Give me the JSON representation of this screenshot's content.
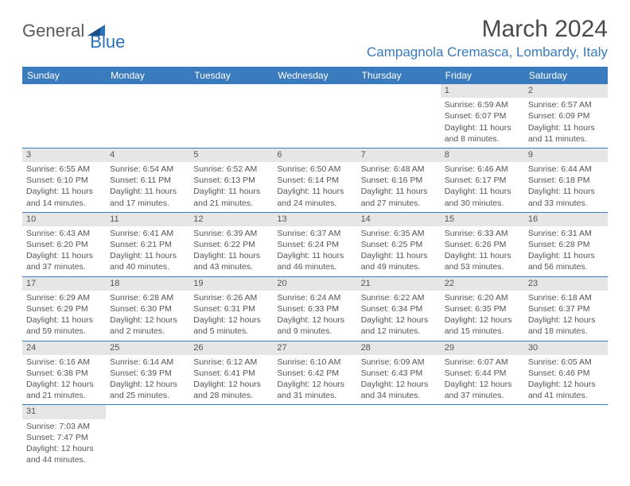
{
  "colors": {
    "header_bg": "#3a7bbd",
    "header_text": "#ffffff",
    "daynum_bg": "#e6e6e6",
    "text": "#555555",
    "divider": "#3a7bbd",
    "location_color": "#3a7bbd",
    "title_color": "#4a4a4a"
  },
  "logo": {
    "text1": "General",
    "text2": "Blue"
  },
  "title": "March 2024",
  "location": "Campagnola Cremasca, Lombardy, Italy",
  "weekdays": [
    "Sunday",
    "Monday",
    "Tuesday",
    "Wednesday",
    "Thursday",
    "Friday",
    "Saturday"
  ],
  "weeks": [
    [
      {
        "blank": true
      },
      {
        "blank": true
      },
      {
        "blank": true
      },
      {
        "blank": true
      },
      {
        "blank": true
      },
      {
        "n": "1",
        "sr": "Sunrise: 6:59 AM",
        "ss": "Sunset: 6:07 PM",
        "dl": "Daylight: 11 hours and 8 minutes."
      },
      {
        "n": "2",
        "sr": "Sunrise: 6:57 AM",
        "ss": "Sunset: 6:09 PM",
        "dl": "Daylight: 11 hours and 11 minutes."
      }
    ],
    [
      {
        "n": "3",
        "sr": "Sunrise: 6:55 AM",
        "ss": "Sunset: 6:10 PM",
        "dl": "Daylight: 11 hours and 14 minutes."
      },
      {
        "n": "4",
        "sr": "Sunrise: 6:54 AM",
        "ss": "Sunset: 6:11 PM",
        "dl": "Daylight: 11 hours and 17 minutes."
      },
      {
        "n": "5",
        "sr": "Sunrise: 6:52 AM",
        "ss": "Sunset: 6:13 PM",
        "dl": "Daylight: 11 hours and 21 minutes."
      },
      {
        "n": "6",
        "sr": "Sunrise: 6:50 AM",
        "ss": "Sunset: 6:14 PM",
        "dl": "Daylight: 11 hours and 24 minutes."
      },
      {
        "n": "7",
        "sr": "Sunrise: 6:48 AM",
        "ss": "Sunset: 6:16 PM",
        "dl": "Daylight: 11 hours and 27 minutes."
      },
      {
        "n": "8",
        "sr": "Sunrise: 6:46 AM",
        "ss": "Sunset: 6:17 PM",
        "dl": "Daylight: 11 hours and 30 minutes."
      },
      {
        "n": "9",
        "sr": "Sunrise: 6:44 AM",
        "ss": "Sunset: 6:18 PM",
        "dl": "Daylight: 11 hours and 33 minutes."
      }
    ],
    [
      {
        "n": "10",
        "sr": "Sunrise: 6:43 AM",
        "ss": "Sunset: 6:20 PM",
        "dl": "Daylight: 11 hours and 37 minutes."
      },
      {
        "n": "11",
        "sr": "Sunrise: 6:41 AM",
        "ss": "Sunset: 6:21 PM",
        "dl": "Daylight: 11 hours and 40 minutes."
      },
      {
        "n": "12",
        "sr": "Sunrise: 6:39 AM",
        "ss": "Sunset: 6:22 PM",
        "dl": "Daylight: 11 hours and 43 minutes."
      },
      {
        "n": "13",
        "sr": "Sunrise: 6:37 AM",
        "ss": "Sunset: 6:24 PM",
        "dl": "Daylight: 11 hours and 46 minutes."
      },
      {
        "n": "14",
        "sr": "Sunrise: 6:35 AM",
        "ss": "Sunset: 6:25 PM",
        "dl": "Daylight: 11 hours and 49 minutes."
      },
      {
        "n": "15",
        "sr": "Sunrise: 6:33 AM",
        "ss": "Sunset: 6:26 PM",
        "dl": "Daylight: 11 hours and 53 minutes."
      },
      {
        "n": "16",
        "sr": "Sunrise: 6:31 AM",
        "ss": "Sunset: 6:28 PM",
        "dl": "Daylight: 11 hours and 56 minutes."
      }
    ],
    [
      {
        "n": "17",
        "sr": "Sunrise: 6:29 AM",
        "ss": "Sunset: 6:29 PM",
        "dl": "Daylight: 11 hours and 59 minutes."
      },
      {
        "n": "18",
        "sr": "Sunrise: 6:28 AM",
        "ss": "Sunset: 6:30 PM",
        "dl": "Daylight: 12 hours and 2 minutes."
      },
      {
        "n": "19",
        "sr": "Sunrise: 6:26 AM",
        "ss": "Sunset: 6:31 PM",
        "dl": "Daylight: 12 hours and 5 minutes."
      },
      {
        "n": "20",
        "sr": "Sunrise: 6:24 AM",
        "ss": "Sunset: 6:33 PM",
        "dl": "Daylight: 12 hours and 9 minutes."
      },
      {
        "n": "21",
        "sr": "Sunrise: 6:22 AM",
        "ss": "Sunset: 6:34 PM",
        "dl": "Daylight: 12 hours and 12 minutes."
      },
      {
        "n": "22",
        "sr": "Sunrise: 6:20 AM",
        "ss": "Sunset: 6:35 PM",
        "dl": "Daylight: 12 hours and 15 minutes."
      },
      {
        "n": "23",
        "sr": "Sunrise: 6:18 AM",
        "ss": "Sunset: 6:37 PM",
        "dl": "Daylight: 12 hours and 18 minutes."
      }
    ],
    [
      {
        "n": "24",
        "sr": "Sunrise: 6:16 AM",
        "ss": "Sunset: 6:38 PM",
        "dl": "Daylight: 12 hours and 21 minutes."
      },
      {
        "n": "25",
        "sr": "Sunrise: 6:14 AM",
        "ss": "Sunset: 6:39 PM",
        "dl": "Daylight: 12 hours and 25 minutes."
      },
      {
        "n": "26",
        "sr": "Sunrise: 6:12 AM",
        "ss": "Sunset: 6:41 PM",
        "dl": "Daylight: 12 hours and 28 minutes."
      },
      {
        "n": "27",
        "sr": "Sunrise: 6:10 AM",
        "ss": "Sunset: 6:42 PM",
        "dl": "Daylight: 12 hours and 31 minutes."
      },
      {
        "n": "28",
        "sr": "Sunrise: 6:09 AM",
        "ss": "Sunset: 6:43 PM",
        "dl": "Daylight: 12 hours and 34 minutes."
      },
      {
        "n": "29",
        "sr": "Sunrise: 6:07 AM",
        "ss": "Sunset: 6:44 PM",
        "dl": "Daylight: 12 hours and 37 minutes."
      },
      {
        "n": "30",
        "sr": "Sunrise: 6:05 AM",
        "ss": "Sunset: 6:46 PM",
        "dl": "Daylight: 12 hours and 41 minutes."
      }
    ],
    [
      {
        "n": "31",
        "sr": "Sunrise: 7:03 AM",
        "ss": "Sunset: 7:47 PM",
        "dl": "Daylight: 12 hours and 44 minutes."
      },
      {
        "blank": true
      },
      {
        "blank": true
      },
      {
        "blank": true
      },
      {
        "blank": true
      },
      {
        "blank": true
      },
      {
        "blank": true
      }
    ]
  ]
}
